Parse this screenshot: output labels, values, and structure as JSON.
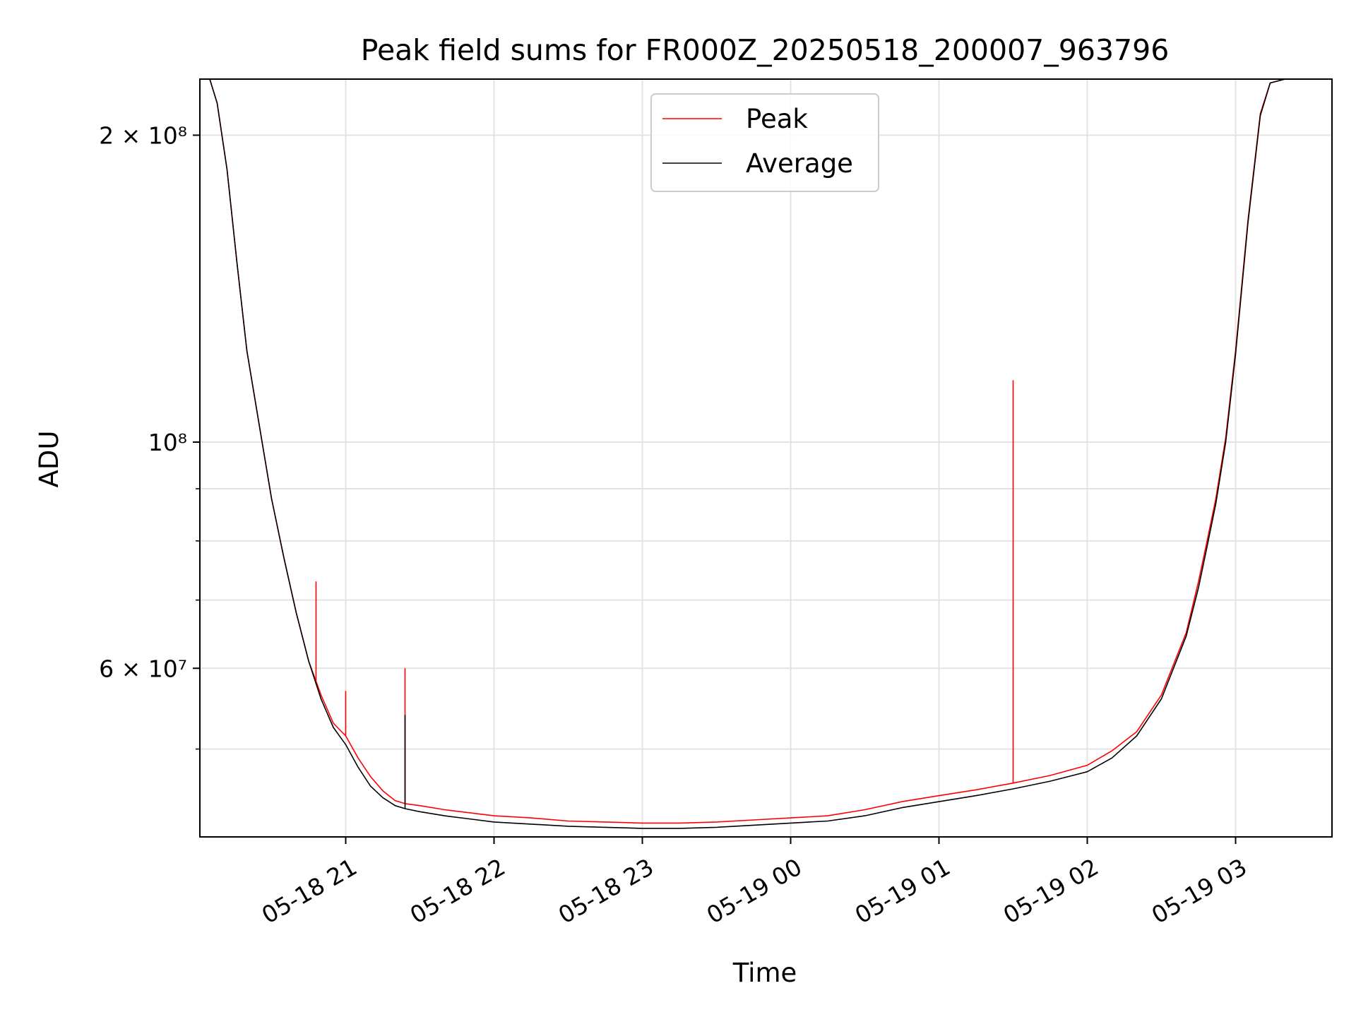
{
  "chart_data": {
    "type": "line",
    "title": "Peak field sums for FR000Z_20250518_200007_963796",
    "xlabel": "Time",
    "ylabel": "ADU",
    "yscale": "log",
    "ylim": [
      41000000,
      227000000
    ],
    "xlim": [
      "2025-05-18 20:01",
      "2025-05-19 03:39"
    ],
    "grid": true,
    "legend_position": "upper center",
    "x_ticks": [
      {
        "t": "2025-05-18 21:00",
        "label": "05-18 21"
      },
      {
        "t": "2025-05-18 22:00",
        "label": "05-18 22"
      },
      {
        "t": "2025-05-18 23:00",
        "label": "05-18 23"
      },
      {
        "t": "2025-05-19 00:00",
        "label": "05-19 00"
      },
      {
        "t": "2025-05-19 01:00",
        "label": "05-19 01"
      },
      {
        "t": "2025-05-19 02:00",
        "label": "05-19 02"
      },
      {
        "t": "2025-05-19 03:00",
        "label": "05-19 03"
      }
    ],
    "y_major_ticks": [
      {
        "v": 60000000,
        "label": "6 × 10⁷"
      },
      {
        "v": 100000000,
        "label": "10⁸"
      },
      {
        "v": 200000000,
        "label": "2 × 10⁸"
      }
    ],
    "y_minor_ticks": [
      50000000,
      70000000,
      80000000,
      90000000
    ],
    "series": [
      {
        "name": "Peak",
        "color": "#ff0000",
        "points": [
          [
            "2025-05-18 20:01",
            227000000
          ],
          [
            "2025-05-18 20:05",
            227000000
          ],
          [
            "2025-05-18 20:08",
            215000000
          ],
          [
            "2025-05-18 20:12",
            185000000
          ],
          [
            "2025-05-18 20:16",
            150000000
          ],
          [
            "2025-05-18 20:20",
            123000000
          ],
          [
            "2025-05-18 20:25",
            104000000
          ],
          [
            "2025-05-18 20:30",
            88000000
          ],
          [
            "2025-05-18 20:35",
            77000000
          ],
          [
            "2025-05-18 20:40",
            68000000
          ],
          [
            "2025-05-18 20:45",
            61000000
          ],
          [
            "2025-05-18 20:50",
            56500000
          ],
          [
            "2025-05-18 20:55",
            53000000
          ],
          [
            "2025-05-18 21:00",
            51500000
          ],
          [
            "2025-05-18 21:05",
            49000000
          ],
          [
            "2025-05-18 21:10",
            47000000
          ],
          [
            "2025-05-18 21:15",
            45500000
          ],
          [
            "2025-05-18 21:20",
            44500000
          ],
          [
            "2025-05-18 21:24",
            44200000
          ],
          [
            "2025-05-18 21:30",
            44000000
          ],
          [
            "2025-05-18 21:40",
            43600000
          ],
          [
            "2025-05-18 21:50",
            43300000
          ],
          [
            "2025-05-18 22:00",
            43000000
          ],
          [
            "2025-05-18 22:15",
            42800000
          ],
          [
            "2025-05-18 22:30",
            42500000
          ],
          [
            "2025-05-18 22:45",
            42400000
          ],
          [
            "2025-05-18 23:00",
            42300000
          ],
          [
            "2025-05-18 23:15",
            42300000
          ],
          [
            "2025-05-18 23:30",
            42400000
          ],
          [
            "2025-05-18 23:45",
            42600000
          ],
          [
            "2025-05-19 00:00",
            42800000
          ],
          [
            "2025-05-19 00:15",
            43000000
          ],
          [
            "2025-05-19 00:30",
            43600000
          ],
          [
            "2025-05-19 00:45",
            44400000
          ],
          [
            "2025-05-19 01:00",
            45000000
          ],
          [
            "2025-05-19 01:15",
            45600000
          ],
          [
            "2025-05-19 01:30",
            46300000
          ],
          [
            "2025-05-19 01:45",
            47100000
          ],
          [
            "2025-05-19 02:00",
            48200000
          ],
          [
            "2025-05-19 02:10",
            49800000
          ],
          [
            "2025-05-19 02:20",
            52000000
          ],
          [
            "2025-05-19 02:30",
            56500000
          ],
          [
            "2025-05-19 02:40",
            65000000
          ],
          [
            "2025-05-19 02:45",
            73000000
          ],
          [
            "2025-05-19 02:48",
            79000000
          ],
          [
            "2025-05-19 02:52",
            88000000
          ],
          [
            "2025-05-19 02:56",
            101000000
          ],
          [
            "2025-05-19 03:00",
            123000000
          ],
          [
            "2025-05-19 03:05",
            165000000
          ],
          [
            "2025-05-19 03:10",
            210000000
          ],
          [
            "2025-05-19 03:14",
            225000000
          ],
          [
            "2025-05-19 03:20",
            227000000
          ],
          [
            "2025-05-19 03:39",
            227000000
          ]
        ],
        "spikes": [
          {
            "t": "2025-05-18 20:48",
            "peak": 73000000
          },
          {
            "t": "2025-05-18 21:00",
            "peak": 57000000
          },
          {
            "t": "2025-05-18 21:24",
            "peak": 60000000
          },
          {
            "t": "2025-05-19 01:30",
            "peak": 115000000
          }
        ]
      },
      {
        "name": "Average",
        "color": "#000000",
        "points": [
          [
            "2025-05-18 20:01",
            227000000
          ],
          [
            "2025-05-18 20:05",
            227000000
          ],
          [
            "2025-05-18 20:08",
            215000000
          ],
          [
            "2025-05-18 20:12",
            185000000
          ],
          [
            "2025-05-18 20:16",
            150000000
          ],
          [
            "2025-05-18 20:20",
            123000000
          ],
          [
            "2025-05-18 20:25",
            104000000
          ],
          [
            "2025-05-18 20:30",
            88000000
          ],
          [
            "2025-05-18 20:35",
            77000000
          ],
          [
            "2025-05-18 20:40",
            68000000
          ],
          [
            "2025-05-18 20:45",
            61000000
          ],
          [
            "2025-05-18 20:50",
            56000000
          ],
          [
            "2025-05-18 20:55",
            52500000
          ],
          [
            "2025-05-18 21:00",
            50500000
          ],
          [
            "2025-05-18 21:05",
            48000000
          ],
          [
            "2025-05-18 21:10",
            46000000
          ],
          [
            "2025-05-18 21:15",
            44800000
          ],
          [
            "2025-05-18 21:20",
            44000000
          ],
          [
            "2025-05-18 21:24",
            43700000
          ],
          [
            "2025-05-18 21:30",
            43400000
          ],
          [
            "2025-05-18 21:40",
            43000000
          ],
          [
            "2025-05-18 21:50",
            42700000
          ],
          [
            "2025-05-18 22:00",
            42400000
          ],
          [
            "2025-05-18 22:15",
            42200000
          ],
          [
            "2025-05-18 22:30",
            42000000
          ],
          [
            "2025-05-18 22:45",
            41900000
          ],
          [
            "2025-05-18 23:00",
            41800000
          ],
          [
            "2025-05-18 23:15",
            41800000
          ],
          [
            "2025-05-18 23:30",
            41900000
          ],
          [
            "2025-05-18 23:45",
            42100000
          ],
          [
            "2025-05-19 00:00",
            42300000
          ],
          [
            "2025-05-19 00:15",
            42500000
          ],
          [
            "2025-05-19 00:30",
            43000000
          ],
          [
            "2025-05-19 00:45",
            43800000
          ],
          [
            "2025-05-19 01:00",
            44400000
          ],
          [
            "2025-05-19 01:15",
            45000000
          ],
          [
            "2025-05-19 01:30",
            45700000
          ],
          [
            "2025-05-19 01:45",
            46500000
          ],
          [
            "2025-05-19 02:00",
            47500000
          ],
          [
            "2025-05-19 02:10",
            49000000
          ],
          [
            "2025-05-19 02:20",
            51500000
          ],
          [
            "2025-05-19 02:30",
            56000000
          ],
          [
            "2025-05-19 02:40",
            64500000
          ],
          [
            "2025-05-19 02:45",
            72000000
          ],
          [
            "2025-05-19 02:48",
            78000000
          ],
          [
            "2025-05-19 02:52",
            87000000
          ],
          [
            "2025-05-19 02:56",
            100000000
          ],
          [
            "2025-05-19 03:00",
            122000000
          ],
          [
            "2025-05-19 03:05",
            164000000
          ],
          [
            "2025-05-19 03:10",
            209000000
          ],
          [
            "2025-05-19 03:14",
            225000000
          ],
          [
            "2025-05-19 03:20",
            227000000
          ],
          [
            "2025-05-19 03:39",
            227000000
          ]
        ],
        "spikes": [
          {
            "t": "2025-05-18 21:24",
            "peak": 54000000
          }
        ]
      }
    ]
  }
}
